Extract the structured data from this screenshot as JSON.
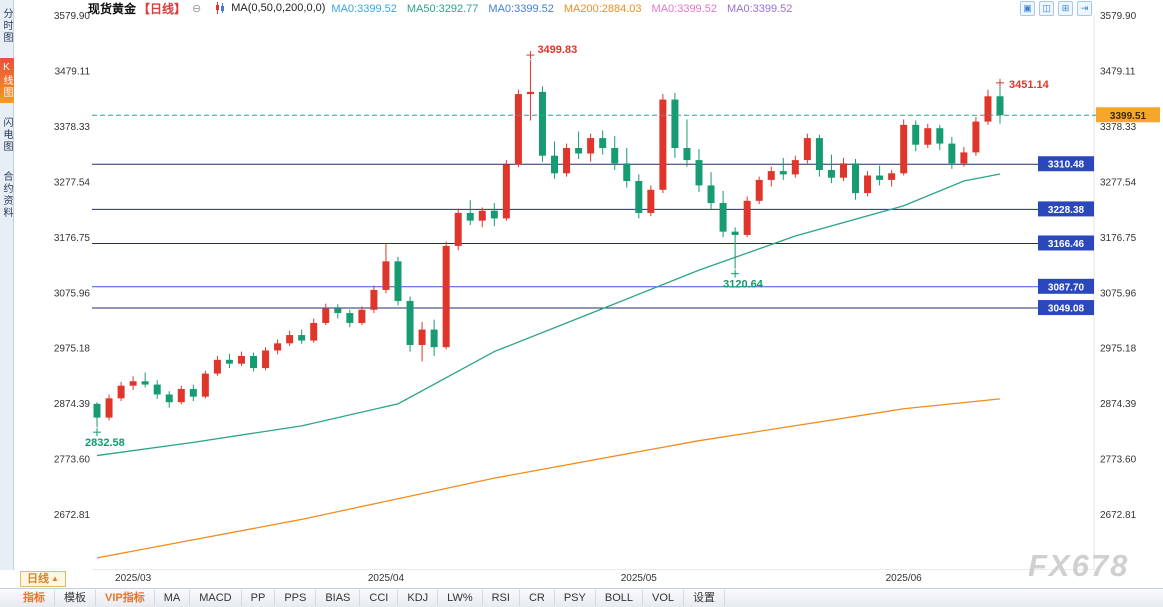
{
  "topbar": {
    "symbol": "现货黄金",
    "period": "【日线】",
    "collapse_glyph": "⊖",
    "ma_formula": "MA(0,50,0,200,0,0)",
    "ma_values": [
      {
        "text": "MA0:3399.52",
        "color": "#36a6e0"
      },
      {
        "text": "MA50:3292.77",
        "color": "#2aa38c"
      },
      {
        "text": "MA0:3399.52",
        "color": "#3f7fd6"
      },
      {
        "text": "MA200:2884.03",
        "color": "#f08c1e"
      },
      {
        "text": "MA0:3399.52",
        "color": "#e476c8"
      },
      {
        "text": "MA0:3399.52",
        "color": "#9a6fd8"
      }
    ],
    "icons": [
      {
        "name": "kline-view-icon",
        "glyph": "▣"
      },
      {
        "name": "split-view-icon",
        "glyph": "◫"
      },
      {
        "name": "grid-view-icon",
        "glyph": "⊞"
      },
      {
        "name": "collapse-right-icon",
        "glyph": "⇥"
      }
    ]
  },
  "sidebar": {
    "items": [
      {
        "label": "分时图",
        "name": "time-share-chart",
        "active": false
      },
      {
        "label": "K线图",
        "name": "kline-chart",
        "active": true
      },
      {
        "label": "闪电图",
        "name": "lightning-chart",
        "active": false
      },
      {
        "label": "合约资料",
        "name": "contract-info",
        "active": false
      }
    ]
  },
  "bottom": {
    "period_tab": "日线",
    "period_tab_arrow": "▲",
    "toolbar": [
      {
        "label": "指标",
        "name": "indicator",
        "color": "#e8742c"
      },
      {
        "label": "模板",
        "name": "template",
        "color": "#333333"
      },
      {
        "label": "VIP指标",
        "name": "vip-indicator",
        "color": "#e8742c"
      },
      {
        "label": "MA",
        "name": "ma",
        "color": "#333333"
      },
      {
        "label": "MACD",
        "name": "macd",
        "color": "#333333"
      },
      {
        "label": "PP",
        "name": "pp",
        "color": "#333333"
      },
      {
        "label": "PPS",
        "name": "pps",
        "color": "#333333"
      },
      {
        "label": "BIAS",
        "name": "bias",
        "color": "#333333"
      },
      {
        "label": "CCI",
        "name": "cci",
        "color": "#333333"
      },
      {
        "label": "KDJ",
        "name": "kdj",
        "color": "#333333"
      },
      {
        "label": "LW%",
        "name": "lw",
        "color": "#333333"
      },
      {
        "label": "RSI",
        "name": "rsi",
        "color": "#333333"
      },
      {
        "label": "CR",
        "name": "cr",
        "color": "#333333"
      },
      {
        "label": "PSY",
        "name": "psy",
        "color": "#333333"
      },
      {
        "label": "BOLL",
        "name": "boll",
        "color": "#333333"
      },
      {
        "label": "VOL",
        "name": "vol",
        "color": "#333333"
      },
      {
        "label": "设置",
        "name": "settings",
        "color": "#333333"
      }
    ]
  },
  "watermark": "FX678",
  "chart_data": {
    "type": "candlestick",
    "symbol": "现货黄金",
    "period": "日线",
    "columns": [
      "open",
      "high",
      "low",
      "close"
    ],
    "y_range": [
      2573.0,
      3579.9
    ],
    "y_ticks": [
      "3579.90",
      "3479.11",
      "3378.33",
      "3277.54",
      "3176.75",
      "3075.96",
      "2975.18",
      "2874.39",
      "2773.60",
      "2672.81"
    ],
    "x_labels": [
      {
        "label": "2025/03",
        "index": 3
      },
      {
        "label": "2025/04",
        "index": 24
      },
      {
        "label": "2025/05",
        "index": 45
      },
      {
        "label": "2025/06",
        "index": 67
      }
    ],
    "colors": {
      "up": "#e0352b",
      "down": "#169b72",
      "axis_text": "#333333"
    },
    "candles": [
      [
        2875,
        2878,
        2832.58,
        2850
      ],
      [
        2850,
        2892,
        2845,
        2885
      ],
      [
        2885,
        2915,
        2880,
        2908
      ],
      [
        2908,
        2925,
        2900,
        2916
      ],
      [
        2916,
        2932,
        2905,
        2910
      ],
      [
        2910,
        2918,
        2884,
        2892
      ],
      [
        2892,
        2898,
        2868,
        2878
      ],
      [
        2878,
        2908,
        2874,
        2902
      ],
      [
        2902,
        2910,
        2880,
        2888
      ],
      [
        2888,
        2935,
        2885,
        2930
      ],
      [
        2930,
        2962,
        2926,
        2955
      ],
      [
        2955,
        2966,
        2940,
        2948
      ],
      [
        2948,
        2970,
        2944,
        2962
      ],
      [
        2962,
        2968,
        2934,
        2940
      ],
      [
        2940,
        2978,
        2936,
        2972
      ],
      [
        2972,
        2992,
        2965,
        2985
      ],
      [
        2985,
        3008,
        2980,
        3000
      ],
      [
        3000,
        3010,
        2984,
        2990
      ],
      [
        2990,
        3030,
        2986,
        3022
      ],
      [
        3022,
        3057,
        3018,
        3048
      ],
      [
        3048,
        3056,
        3030,
        3040
      ],
      [
        3040,
        3046,
        3014,
        3022
      ],
      [
        3022,
        3052,
        3018,
        3046
      ],
      [
        3046,
        3090,
        3040,
        3082
      ],
      [
        3082,
        3167,
        3076,
        3134
      ],
      [
        3134,
        3142,
        3054,
        3062
      ],
      [
        3062,
        3070,
        2970,
        2982
      ],
      [
        2982,
        3024,
        2952,
        3010
      ],
      [
        3010,
        3028,
        2962,
        2978
      ],
      [
        2978,
        3170,
        2974,
        3162
      ],
      [
        3162,
        3230,
        3154,
        3222
      ],
      [
        3222,
        3245,
        3200,
        3208
      ],
      [
        3208,
        3232,
        3196,
        3226
      ],
      [
        3226,
        3240,
        3198,
        3212
      ],
      [
        3212,
        3318,
        3208,
        3310
      ],
      [
        3310,
        3446,
        3305,
        3438
      ],
      [
        3438,
        3499.83,
        3390,
        3442
      ],
      [
        3442,
        3452,
        3315,
        3326
      ],
      [
        3326,
        3352,
        3284,
        3294
      ],
      [
        3294,
        3348,
        3288,
        3340
      ],
      [
        3340,
        3370,
        3320,
        3330
      ],
      [
        3330,
        3366,
        3315,
        3358
      ],
      [
        3358,
        3372,
        3328,
        3340
      ],
      [
        3340,
        3362,
        3300,
        3312
      ],
      [
        3312,
        3340,
        3268,
        3280
      ],
      [
        3280,
        3292,
        3212,
        3222
      ],
      [
        3222,
        3272,
        3216,
        3264
      ],
      [
        3264,
        3438,
        3258,
        3428
      ],
      [
        3428,
        3440,
        3322,
        3340
      ],
      [
        3340,
        3392,
        3306,
        3318
      ],
      [
        3318,
        3338,
        3260,
        3272
      ],
      [
        3272,
        3296,
        3228,
        3240
      ],
      [
        3240,
        3262,
        3178,
        3188
      ],
      [
        3188,
        3196,
        3120.64,
        3182
      ],
      [
        3182,
        3252,
        3178,
        3244
      ],
      [
        3244,
        3288,
        3238,
        3282
      ],
      [
        3282,
        3306,
        3270,
        3298
      ],
      [
        3298,
        3322,
        3282,
        3292
      ],
      [
        3292,
        3326,
        3286,
        3318
      ],
      [
        3318,
        3366,
        3312,
        3358
      ],
      [
        3358,
        3364,
        3288,
        3300
      ],
      [
        3300,
        3328,
        3276,
        3286
      ],
      [
        3286,
        3322,
        3280,
        3312
      ],
      [
        3312,
        3320,
        3246,
        3258
      ],
      [
        3258,
        3298,
        3252,
        3290
      ],
      [
        3290,
        3308,
        3272,
        3282
      ],
      [
        3282,
        3300,
        3270,
        3294
      ],
      [
        3294,
        3392,
        3290,
        3382
      ],
      [
        3382,
        3390,
        3334,
        3346
      ],
      [
        3346,
        3384,
        3340,
        3376
      ],
      [
        3376,
        3382,
        3336,
        3348
      ],
      [
        3348,
        3360,
        3302,
        3312
      ],
      [
        3312,
        3342,
        3306,
        3332
      ],
      [
        3332,
        3396,
        3326,
        3388
      ],
      [
        3388,
        3446,
        3382,
        3434
      ],
      [
        3434,
        3451.14,
        3384,
        3399.51
      ]
    ],
    "ma_lines": [
      {
        "name": "MA50",
        "color": "#2aa38c",
        "points": [
          [
            0,
            2781
          ],
          [
            8,
            2805
          ],
          [
            17,
            2835
          ],
          [
            25,
            2875
          ],
          [
            33,
            2970
          ],
          [
            42,
            3048
          ],
          [
            50,
            3118
          ],
          [
            58,
            3180
          ],
          [
            67,
            3235
          ],
          [
            72,
            3280
          ],
          [
            75,
            3292.77
          ]
        ]
      },
      {
        "name": "MA200",
        "color": "#f08c1e",
        "points": [
          [
            0,
            2595
          ],
          [
            17,
            2665
          ],
          [
            33,
            2740
          ],
          [
            50,
            2808
          ],
          [
            67,
            2866
          ],
          [
            75,
            2884.03
          ]
        ]
      }
    ],
    "h_lines": [
      {
        "value": 3310.48,
        "label": "3310.48",
        "line_color": "#1f2d6e",
        "label_bg": "#2a47bb"
      },
      {
        "value": 3228.38,
        "label": "3228.38",
        "line_color": "#1f2d6e",
        "label_bg": "#2a47bb"
      },
      {
        "value": 3166.46,
        "label": "3166.46",
        "line_color": "#1f2d6e",
        "label_bg": "#2a47bb"
      },
      {
        "value": 3087.7,
        "label": "3087.70",
        "line_color": "#3a57d6",
        "label_bg": "#2a47bb"
      },
      {
        "value": 3049.08,
        "label": "3049.08",
        "line_color": "#1f2d6e",
        "label_bg": "#2a47bb"
      }
    ],
    "current_price": {
      "value": 3399.51,
      "label": "3399.51",
      "line_color": "#2aa38c",
      "label_bg": "#f6a62a"
    },
    "annotations": [
      {
        "text": "3499.83",
        "index": 36,
        "price": 3499.83,
        "color": "#e0352b",
        "pos": "top"
      },
      {
        "text": "3451.14",
        "index": 75,
        "price": 3451.14,
        "color": "#e0352b",
        "pos": "right"
      },
      {
        "text": "2832.58",
        "index": 0,
        "price": 2832.58,
        "color": "#0e9c6e",
        "pos": "bottom"
      },
      {
        "text": "3120.64",
        "index": 53,
        "price": 3120.64,
        "color": "#0e9c6e",
        "pos": "bottom"
      }
    ]
  }
}
